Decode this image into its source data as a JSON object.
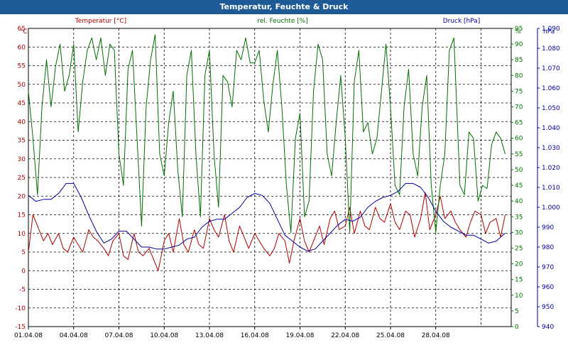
{
  "window": {
    "title": "Temperatur, Feuchte & Druck"
  },
  "chart_data": {
    "type": "line",
    "title": "Temperatur, Feuchte & Druck",
    "x": [
      "01.04.08",
      "04.04.08",
      "07.04.08",
      "10.04.08",
      "13.04.08",
      "16.04.08",
      "19.04.08",
      "22.04.08",
      "25.04.08",
      "28.04.08"
    ],
    "xlim": [
      "01.04.08",
      "03.05.08"
    ],
    "grid": true,
    "axes": {
      "left": {
        "label": "Temperatur [°C]",
        "unit": "°C",
        "min": -15,
        "max": 65,
        "ticks": [
          "65",
          "60",
          "55",
          "50",
          "45",
          "40",
          "35",
          "30",
          "25",
          "20",
          "15",
          "10",
          "5",
          "0",
          "-5",
          "-10",
          "-15"
        ],
        "color": "#b00000"
      },
      "middle": {
        "label": "rel. Feuchte [%]",
        "unit": "%",
        "min": 0,
        "max": 95,
        "ticks": [
          "95",
          "90",
          "85",
          "80",
          "75",
          "70",
          "65",
          "60",
          "55",
          "50",
          "45",
          "40",
          "35",
          "30",
          "25",
          "20",
          "15",
          "10",
          "5",
          "0"
        ],
        "color": "#007000"
      },
      "right": {
        "label": "Druck [hPa]",
        "unit": "hPa",
        "min": 940,
        "max": 1090,
        "ticks": [
          "1.090",
          "1.080",
          "1.070",
          "1.060",
          "1.050",
          "1.040",
          "1.030",
          "1.020",
          "1.010",
          "1.000",
          "990",
          "980",
          "970",
          "960",
          "950",
          "940"
        ],
        "color": "#0000a0"
      }
    },
    "series": [
      {
        "name": "Temperatur [°C]",
        "color": "#b00000",
        "axis": "left",
        "values": [
          [
            0,
            5
          ],
          [
            0.3,
            15
          ],
          [
            0.6,
            12
          ],
          [
            1,
            8
          ],
          [
            1.3,
            10
          ],
          [
            1.6,
            7
          ],
          [
            2,
            10
          ],
          [
            2.3,
            6
          ],
          [
            2.6,
            5
          ],
          [
            3,
            9
          ],
          [
            3.3,
            7
          ],
          [
            3.6,
            5
          ],
          [
            4,
            11
          ],
          [
            4.3,
            9
          ],
          [
            4.6,
            8
          ],
          [
            5,
            6
          ],
          [
            5.3,
            4
          ],
          [
            5.6,
            8
          ],
          [
            6,
            10
          ],
          [
            6.3,
            4
          ],
          [
            6.6,
            3
          ],
          [
            7,
            10
          ],
          [
            7.3,
            5
          ],
          [
            7.6,
            4
          ],
          [
            8,
            6
          ],
          [
            8.3,
            3
          ],
          [
            8.6,
            0
          ],
          [
            9,
            8
          ],
          [
            9.3,
            10
          ],
          [
            9.6,
            5
          ],
          [
            10,
            14
          ],
          [
            10.3,
            7
          ],
          [
            10.6,
            5
          ],
          [
            11,
            11
          ],
          [
            11.3,
            7
          ],
          [
            11.6,
            6
          ],
          [
            12,
            14
          ],
          [
            12.3,
            11
          ],
          [
            12.6,
            9
          ],
          [
            13,
            15
          ],
          [
            13.3,
            8
          ],
          [
            13.6,
            5
          ],
          [
            14,
            12
          ],
          [
            14.3,
            9
          ],
          [
            14.6,
            6
          ],
          [
            15,
            10
          ],
          [
            15.3,
            8
          ],
          [
            15.6,
            6
          ],
          [
            16,
            4
          ],
          [
            16.3,
            6
          ],
          [
            16.6,
            10
          ],
          [
            17,
            8
          ],
          [
            17.3,
            2
          ],
          [
            17.6,
            8
          ],
          [
            18,
            14
          ],
          [
            18.3,
            8
          ],
          [
            18.6,
            5
          ],
          [
            19,
            9
          ],
          [
            19.3,
            12
          ],
          [
            19.6,
            7
          ],
          [
            20,
            14
          ],
          [
            20.3,
            16
          ],
          [
            20.6,
            11
          ],
          [
            21,
            12
          ],
          [
            21.3,
            17
          ],
          [
            21.6,
            10
          ],
          [
            22,
            16
          ],
          [
            22.3,
            12
          ],
          [
            22.6,
            11
          ],
          [
            23,
            17
          ],
          [
            23.3,
            14
          ],
          [
            23.6,
            13
          ],
          [
            24,
            18
          ],
          [
            24.3,
            13
          ],
          [
            24.6,
            11
          ],
          [
            25,
            16
          ],
          [
            25.3,
            15
          ],
          [
            25.6,
            9
          ],
          [
            26,
            14
          ],
          [
            26.3,
            21
          ],
          [
            26.6,
            11
          ],
          [
            27,
            15
          ],
          [
            27.3,
            20
          ],
          [
            27.6,
            14
          ],
          [
            28,
            16
          ],
          [
            28.3,
            13
          ],
          [
            28.6,
            11
          ],
          [
            29,
            9
          ],
          [
            29.3,
            13
          ],
          [
            29.6,
            16
          ],
          [
            30,
            15
          ],
          [
            30.3,
            10
          ],
          [
            30.6,
            13
          ],
          [
            31,
            14
          ],
          [
            31.3,
            9
          ],
          [
            31.6,
            15
          ]
        ]
      },
      {
        "name": "rel. Feuchte [%]",
        "color": "#007000",
        "axis": "middle",
        "values": [
          [
            0,
            75
          ],
          [
            0.3,
            60
          ],
          [
            0.6,
            42
          ],
          [
            0.9,
            70
          ],
          [
            1.2,
            85
          ],
          [
            1.5,
            70
          ],
          [
            1.8,
            83
          ],
          [
            2.1,
            90
          ],
          [
            2.4,
            75
          ],
          [
            2.7,
            80
          ],
          [
            3,
            90
          ],
          [
            3.3,
            62
          ],
          [
            3.6,
            78
          ],
          [
            3.9,
            88
          ],
          [
            4.2,
            92
          ],
          [
            4.5,
            85
          ],
          [
            4.8,
            92
          ],
          [
            5.1,
            80
          ],
          [
            5.4,
            90
          ],
          [
            5.7,
            88
          ],
          [
            6,
            55
          ],
          [
            6.3,
            45
          ],
          [
            6.6,
            82
          ],
          [
            6.9,
            88
          ],
          [
            7.2,
            60
          ],
          [
            7.5,
            32
          ],
          [
            7.8,
            70
          ],
          [
            8.1,
            85
          ],
          [
            8.4,
            93
          ],
          [
            8.7,
            55
          ],
          [
            9,
            48
          ],
          [
            9.3,
            65
          ],
          [
            9.6,
            75
          ],
          [
            9.9,
            50
          ],
          [
            10.2,
            35
          ],
          [
            10.5,
            80
          ],
          [
            10.8,
            88
          ],
          [
            11.1,
            55
          ],
          [
            11.4,
            35
          ],
          [
            11.7,
            80
          ],
          [
            12,
            88
          ],
          [
            12.3,
            55
          ],
          [
            12.6,
            38
          ],
          [
            12.9,
            80
          ],
          [
            13.2,
            78
          ],
          [
            13.5,
            70
          ],
          [
            13.8,
            88
          ],
          [
            14.1,
            85
          ],
          [
            14.4,
            92
          ],
          [
            14.7,
            84
          ],
          [
            15,
            84
          ],
          [
            15.3,
            88
          ],
          [
            15.6,
            72
          ],
          [
            15.9,
            62
          ],
          [
            16.2,
            77
          ],
          [
            16.5,
            88
          ],
          [
            16.8,
            70
          ],
          [
            17.1,
            45
          ],
          [
            17.4,
            30
          ],
          [
            17.7,
            60
          ],
          [
            18,
            68
          ],
          [
            18.3,
            35
          ],
          [
            18.6,
            40
          ],
          [
            18.9,
            75
          ],
          [
            19.2,
            90
          ],
          [
            19.5,
            85
          ],
          [
            19.8,
            55
          ],
          [
            20.1,
            48
          ],
          [
            20.4,
            65
          ],
          [
            20.7,
            80
          ],
          [
            21,
            60
          ],
          [
            21.3,
            30
          ],
          [
            21.6,
            78
          ],
          [
            21.9,
            88
          ],
          [
            22.2,
            62
          ],
          [
            22.5,
            65
          ],
          [
            22.8,
            55
          ],
          [
            23.1,
            60
          ],
          [
            23.4,
            75
          ],
          [
            23.7,
            90
          ],
          [
            24,
            70
          ],
          [
            24.3,
            45
          ],
          [
            24.6,
            42
          ],
          [
            24.9,
            70
          ],
          [
            25.2,
            82
          ],
          [
            25.5,
            55
          ],
          [
            25.8,
            48
          ],
          [
            26.1,
            70
          ],
          [
            26.4,
            80
          ],
          [
            26.7,
            45
          ],
          [
            27,
            30
          ],
          [
            27.3,
            45
          ],
          [
            27.6,
            55
          ],
          [
            27.9,
            88
          ],
          [
            28.2,
            92
          ],
          [
            28.6,
            45
          ],
          [
            28.9,
            42
          ],
          [
            29.2,
            62
          ],
          [
            29.5,
            60
          ],
          [
            29.8,
            40
          ],
          [
            30.1,
            45
          ],
          [
            30.4,
            44
          ],
          [
            30.7,
            58
          ],
          [
            31,
            62
          ],
          [
            31.3,
            60
          ],
          [
            31.6,
            55
          ]
        ]
      },
      {
        "name": "Druck [hPa]",
        "color": "#0000a0",
        "axis": "right",
        "values": [
          [
            0,
            1006
          ],
          [
            0.5,
            1003
          ],
          [
            1,
            1004
          ],
          [
            1.5,
            1004
          ],
          [
            2,
            1007
          ],
          [
            2.5,
            1012
          ],
          [
            3,
            1012
          ],
          [
            3.5,
            1005
          ],
          [
            4,
            996
          ],
          [
            4.5,
            988
          ],
          [
            5,
            982
          ],
          [
            5.5,
            984
          ],
          [
            6,
            988
          ],
          [
            6.5,
            988
          ],
          [
            7,
            984
          ],
          [
            7.5,
            980
          ],
          [
            8,
            980
          ],
          [
            8.5,
            979
          ],
          [
            9,
            979
          ],
          [
            9.5,
            980
          ],
          [
            10,
            981
          ],
          [
            10.5,
            984
          ],
          [
            11,
            985
          ],
          [
            11.5,
            990
          ],
          [
            12,
            993
          ],
          [
            12.5,
            994
          ],
          [
            13,
            994
          ],
          [
            13.5,
            997
          ],
          [
            14,
            1000
          ],
          [
            14.5,
            1005
          ],
          [
            15,
            1007
          ],
          [
            15.5,
            1006
          ],
          [
            16,
            1002
          ],
          [
            16.5,
            994
          ],
          [
            17,
            986
          ],
          [
            17.5,
            983
          ],
          [
            18,
            980
          ],
          [
            18.5,
            978
          ],
          [
            19,
            979
          ],
          [
            19.5,
            983
          ],
          [
            20,
            987
          ],
          [
            20.5,
            991
          ],
          [
            21,
            994
          ],
          [
            21.5,
            993
          ],
          [
            22,
            995
          ],
          [
            22.5,
            1000
          ],
          [
            23,
            1003
          ],
          [
            23.5,
            1005
          ],
          [
            24,
            1006
          ],
          [
            24.5,
            1008
          ],
          [
            25,
            1012
          ],
          [
            25.5,
            1012
          ],
          [
            26,
            1010
          ],
          [
            26.5,
            1005
          ],
          [
            27,
            998
          ],
          [
            27.5,
            993
          ],
          [
            28,
            990
          ],
          [
            28.5,
            988
          ],
          [
            29,
            986
          ],
          [
            29.5,
            986
          ],
          [
            30,
            984
          ],
          [
            30.5,
            982
          ],
          [
            31,
            983
          ],
          [
            31.6,
            987
          ]
        ]
      }
    ]
  }
}
